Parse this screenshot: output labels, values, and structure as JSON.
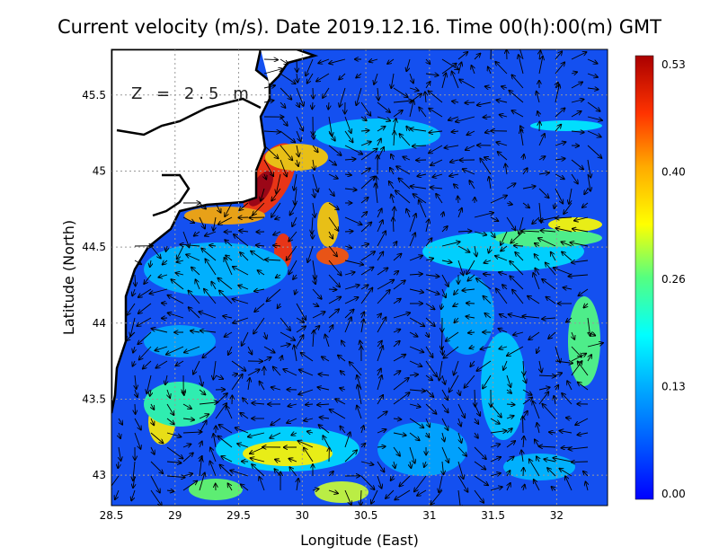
{
  "title": "Current velocity (m/s). Date 2019.12.16. Time 00(h):00(m) GMT",
  "depth_label": "Z = 2.5 m",
  "axes": {
    "xlabel": "Longitude (East)",
    "ylabel": "Latitude (North)",
    "xticks": [
      "28.5",
      "29",
      "29.5",
      "30",
      "30.5",
      "31",
      "31.5",
      "32"
    ],
    "yticks": [
      "43",
      "43.5",
      "44",
      "44.5",
      "45",
      "45.5"
    ],
    "xlim": [
      28.5,
      32.4
    ],
    "ylim": [
      42.8,
      45.8
    ]
  },
  "colorbar": {
    "ticks": [
      "0.53",
      "0.40",
      "0.26",
      "0.13",
      "0.00"
    ],
    "min": 0.0,
    "max": 0.53,
    "colors": [
      "#0000ff",
      "#0055ff",
      "#00aaff",
      "#00ffff",
      "#55ff80",
      "#ffff00",
      "#ffaa00",
      "#ff5500",
      "#ff0000",
      "#aa0000"
    ]
  },
  "colors": {
    "land": "#ffffff",
    "coast": "#000000",
    "grid": "#9a9a9a",
    "sea_background": "#1450f0"
  }
}
